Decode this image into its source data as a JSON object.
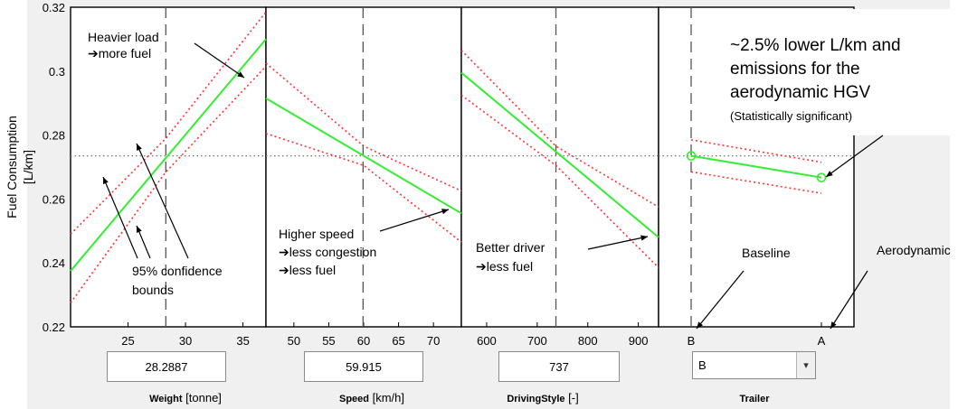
{
  "chart_data": {
    "type": "line",
    "y_axis": {
      "label_line1": "Fuel Consumption",
      "label_line2": "[L/km]",
      "ylim": [
        0.22,
        0.32
      ],
      "ticks": [
        0.22,
        0.24,
        0.26,
        0.28,
        0.3,
        0.32
      ],
      "tick_labels": [
        "0.22",
        "0.24",
        "0.26",
        "0.28",
        "0.3",
        "0.32"
      ]
    },
    "mean_y": 0.2735,
    "colors": {
      "fit": "#33ee33",
      "bounds": "#ff3333",
      "crosshair": "#555555",
      "mean": "#777777"
    },
    "panels": [
      {
        "predictor": "Weight",
        "unit": "[tonne]",
        "current_value": "28.2887",
        "xlim": [
          20,
          37
        ],
        "ticks": [
          25,
          30,
          35
        ],
        "tick_labels": [
          "25",
          "30",
          "35"
        ],
        "fit": {
          "x": [
            20,
            37
          ],
          "y": [
            0.2375,
            0.31
          ]
        },
        "upper_bound": {
          "x": [
            20,
            28.3,
            37
          ],
          "y": [
            0.249,
            0.279,
            0.3185
          ]
        },
        "lower_bound": {
          "x": [
            20,
            28.3,
            37
          ],
          "y": [
            0.2275,
            0.2685,
            0.3015
          ]
        },
        "crosshair_x": 28.2887
      },
      {
        "predictor": "Speed",
        "unit": "[km/h]",
        "current_value": "59.915",
        "xlim": [
          46,
          74
        ],
        "ticks": [
          50,
          55,
          60,
          65,
          70
        ],
        "tick_labels": [
          "50",
          "55",
          "60",
          "65",
          "70"
        ],
        "fit": {
          "x": [
            46,
            74
          ],
          "y": [
            0.2915,
            0.2555
          ]
        },
        "upper_bound": {
          "x": [
            46,
            60,
            74
          ],
          "y": [
            0.3025,
            0.2765,
            0.2625
          ]
        },
        "lower_bound": {
          "x": [
            46,
            60,
            74
          ],
          "y": [
            0.2805,
            0.2705,
            0.2465
          ]
        },
        "crosshair_x": 59.915
      },
      {
        "predictor": "DrivingStyle",
        "unit": "[-]",
        "current_value": "737",
        "xlim": [
          550,
          940
        ],
        "ticks": [
          600,
          700,
          800,
          900
        ],
        "tick_labels": [
          "600",
          "700",
          "800",
          "900"
        ],
        "fit": {
          "x": [
            550,
            940
          ],
          "y": [
            0.2995,
            0.248
          ]
        },
        "upper_bound": {
          "x": [
            550,
            737,
            940
          ],
          "y": [
            0.3065,
            0.2765,
            0.2575
          ]
        },
        "lower_bound": {
          "x": [
            550,
            737,
            940
          ],
          "y": [
            0.2925,
            0.2705,
            0.2385
          ]
        },
        "crosshair_x": 737
      },
      {
        "predictor": "Trailer",
        "unit": "",
        "current_value": "B",
        "categories": [
          "B",
          "A"
        ],
        "fit": {
          "x": [
            "B",
            "A"
          ],
          "y": [
            0.2735,
            0.2667
          ]
        },
        "upper_bound": {
          "x": [
            "B",
            "A"
          ],
          "y": [
            0.2785,
            0.2715
          ]
        },
        "lower_bound": {
          "x": [
            "B",
            "A"
          ],
          "y": [
            0.2685,
            0.2618
          ]
        },
        "crosshair_x": "B"
      }
    ],
    "annotations": {
      "heavier_load": [
        "Heavier load",
        "➔more fuel"
      ],
      "confidence": [
        "95% confidence",
        "bounds"
      ],
      "higher_speed": [
        "Higher speed",
        "➔less congestion",
        "➔less fuel"
      ],
      "better_driver": [
        "Better driver",
        "➔less fuel"
      ],
      "baseline": "Baseline",
      "aerodynamic": "Aerodynamic",
      "aero_result": [
        "~2.5% lower L/km and",
        "emissions for the",
        "aerodynamic HGV"
      ],
      "significance": "(Statistically significant)"
    }
  }
}
